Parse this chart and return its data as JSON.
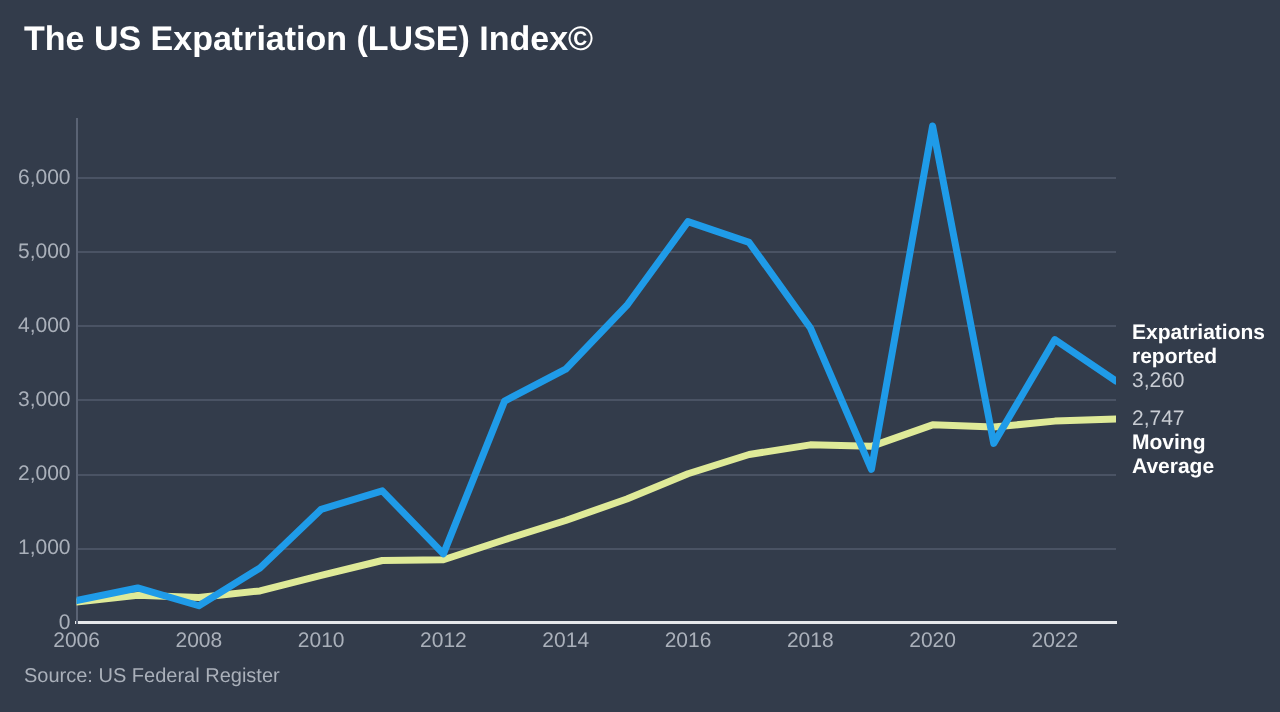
{
  "chart_data": {
    "type": "line",
    "title": "The US Expatriation (LUSE) Index©",
    "annotations": [
      "Source: US Federal Register"
    ],
    "x": [
      2006,
      2007,
      2008,
      2009,
      2010,
      2011,
      2012,
      2013,
      2014,
      2015,
      2016,
      2017,
      2018,
      2019,
      2020,
      2021,
      2022,
      2023
    ],
    "series": [
      {
        "name": "Expatriations reported",
        "color": "#1f9be8",
        "values": [
          300,
          470,
          230,
          740,
          1530,
          1780,
          930,
          2990,
          3420,
          4280,
          5410,
          5130,
          3980,
          2070,
          6700,
          2420,
          3820,
          3260
        ],
        "value_labels": [
          null,
          null,
          null,
          null,
          null,
          null,
          null,
          null,
          null,
          null,
          null,
          null,
          null,
          null,
          null,
          null,
          null,
          "3,260"
        ]
      },
      {
        "name": "Moving Average",
        "color": "#dfea98",
        "values": [
          280,
          370,
          340,
          430,
          640,
          840,
          850,
          1120,
          1380,
          1670,
          2010,
          2270,
          2400,
          2380,
          2670,
          2640,
          2720,
          2747
        ],
        "value_labels": [
          null,
          null,
          null,
          null,
          null,
          null,
          null,
          null,
          null,
          null,
          null,
          null,
          null,
          null,
          null,
          null,
          null,
          "2,747"
        ]
      }
    ],
    "xlim": [
      2006,
      2023
    ],
    "xticks": [
      2006,
      2008,
      2010,
      2012,
      2014,
      2016,
      2018,
      2020,
      2022
    ],
    "ylim": [
      0,
      6800
    ],
    "yticks": [
      0,
      {
        "value": 1000,
        "label": "1,000"
      },
      {
        "value": 2000,
        "label": "2,000"
      },
      {
        "value": 3000,
        "label": "3,000"
      },
      {
        "value": 4000,
        "label": "4,000"
      },
      {
        "value": 5000,
        "label": "5,000"
      },
      {
        "value": 6000,
        "label": "6,000"
      }
    ],
    "grid": "y",
    "legend": false,
    "marker": "none",
    "line_style": "solid"
  }
}
